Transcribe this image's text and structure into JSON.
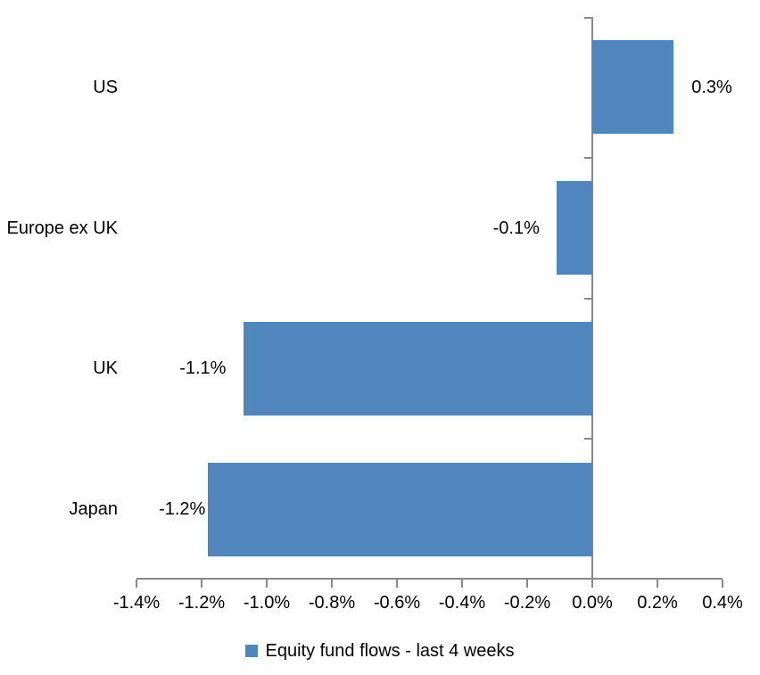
{
  "chart_data": {
    "type": "bar",
    "orientation": "horizontal",
    "title": "",
    "xlabel": "",
    "ylabel": "",
    "grid": false,
    "legend_position": "bottom",
    "legend_label": "Equity fund flows - last 4 weeks",
    "categories": [
      "US",
      "Europe ex UK",
      "UK",
      "Japan"
    ],
    "series": [
      {
        "name": "Equity fund flows - last 4 weeks",
        "values": [
          0.25,
          -0.11,
          -1.07,
          -1.18
        ],
        "data_labels": [
          "0.3%",
          "-0.1%",
          "-1.1%",
          "-1.2%"
        ]
      }
    ],
    "xlim": [
      -1.4,
      0.4
    ],
    "x_ticks": [
      {
        "value": -1.4,
        "label": "-1.4%"
      },
      {
        "value": -1.2,
        "label": "-1.2%"
      },
      {
        "value": -1.0,
        "label": "-1.0%"
      },
      {
        "value": -0.8,
        "label": "-0.8%"
      },
      {
        "value": -0.6,
        "label": "-0.6%"
      },
      {
        "value": -0.4,
        "label": "-0.4%"
      },
      {
        "value": -0.2,
        "label": "-0.2%"
      },
      {
        "value": 0.0,
        "label": "0.0%"
      },
      {
        "value": 0.2,
        "label": "0.2%"
      },
      {
        "value": 0.4,
        "label": "0.4%"
      }
    ],
    "unit": "percent",
    "colors": {
      "bar": "#4E86BD",
      "axis": "#898989",
      "text": "#000000",
      "background": "#FFFFFF"
    }
  }
}
